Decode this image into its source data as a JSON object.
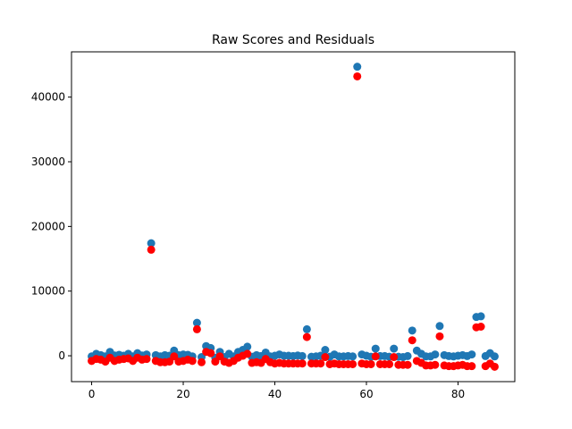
{
  "chart_data": {
    "type": "scatter",
    "title": "Raw Scores and Residuals",
    "xlabel": "",
    "ylabel": "",
    "xlim": [
      -4.4,
      92.4
    ],
    "ylim": [
      -4000,
      47000
    ],
    "xticks": [
      0,
      20,
      40,
      60,
      80
    ],
    "xtick_labels": [
      "0",
      "20",
      "40",
      "60",
      "80"
    ],
    "yticks": [
      0,
      10000,
      20000,
      30000,
      40000
    ],
    "ytick_labels": [
      "0",
      "10000",
      "20000",
      "30000",
      "40000"
    ],
    "grid": false,
    "x": [
      0,
      1,
      2,
      3,
      4,
      5,
      6,
      7,
      8,
      9,
      10,
      11,
      12,
      13,
      14,
      15,
      16,
      17,
      18,
      19,
      20,
      21,
      22,
      23,
      24,
      25,
      26,
      27,
      28,
      29,
      30,
      31,
      32,
      33,
      34,
      35,
      36,
      37,
      38,
      39,
      40,
      41,
      42,
      43,
      44,
      45,
      46,
      47,
      48,
      49,
      50,
      51,
      52,
      53,
      54,
      55,
      56,
      57,
      58,
      59,
      60,
      61,
      62,
      63,
      64,
      65,
      66,
      67,
      68,
      69,
      70,
      71,
      72,
      73,
      74,
      75,
      76,
      77,
      78,
      79,
      80,
      81,
      82,
      83,
      84,
      85,
      86,
      87,
      88
    ],
    "series": [
      {
        "color": "#1f77b4",
        "values": [
          -100,
          300,
          100,
          -100,
          600,
          50,
          150,
          0,
          300,
          -100,
          400,
          50,
          200,
          17400,
          100,
          -100,
          100,
          0,
          800,
          100,
          200,
          150,
          -100,
          5100,
          -200,
          1500,
          1200,
          -300,
          600,
          -200,
          300,
          -100,
          600,
          900,
          1400,
          -150,
          100,
          -50,
          500,
          -100,
          0,
          200,
          0,
          0,
          -50,
          50,
          -50,
          4100,
          -150,
          -100,
          0,
          900,
          -150,
          200,
          -100,
          -100,
          -50,
          -100,
          44700,
          200,
          0,
          -150,
          1100,
          -50,
          -50,
          -150,
          1100,
          -150,
          -200,
          -50,
          3900,
          800,
          300,
          -100,
          -100,
          200,
          4600,
          100,
          -50,
          -100,
          0,
          100,
          -50,
          200,
          6000,
          6100,
          -50,
          400,
          -100
        ]
      },
      {
        "color": "#ff0000",
        "values": [
          -800,
          -500,
          -600,
          -900,
          -300,
          -800,
          -600,
          -500,
          -400,
          -800,
          -300,
          -600,
          -500,
          16400,
          -800,
          -1000,
          -1000,
          -900,
          -100,
          -900,
          -800,
          -600,
          -800,
          4100,
          -1000,
          600,
          400,
          -900,
          -100,
          -900,
          -1100,
          -800,
          -300,
          0,
          300,
          -1100,
          -1000,
          -1100,
          -500,
          -1000,
          -1200,
          -1100,
          -1200,
          -1200,
          -1200,
          -1200,
          -1200,
          2900,
          -1200,
          -1200,
          -1200,
          -200,
          -1300,
          -1200,
          -1300,
          -1300,
          -1300,
          -1300,
          43200,
          -1200,
          -1300,
          -1300,
          -100,
          -1300,
          -1300,
          -1300,
          -200,
          -1400,
          -1400,
          -1400,
          2400,
          -800,
          -1100,
          -1500,
          -1500,
          -1400,
          3000,
          -1500,
          -1600,
          -1600,
          -1500,
          -1400,
          -1600,
          -1600,
          4400,
          4500,
          -1600,
          -1200,
          -1700
        ]
      }
    ]
  }
}
